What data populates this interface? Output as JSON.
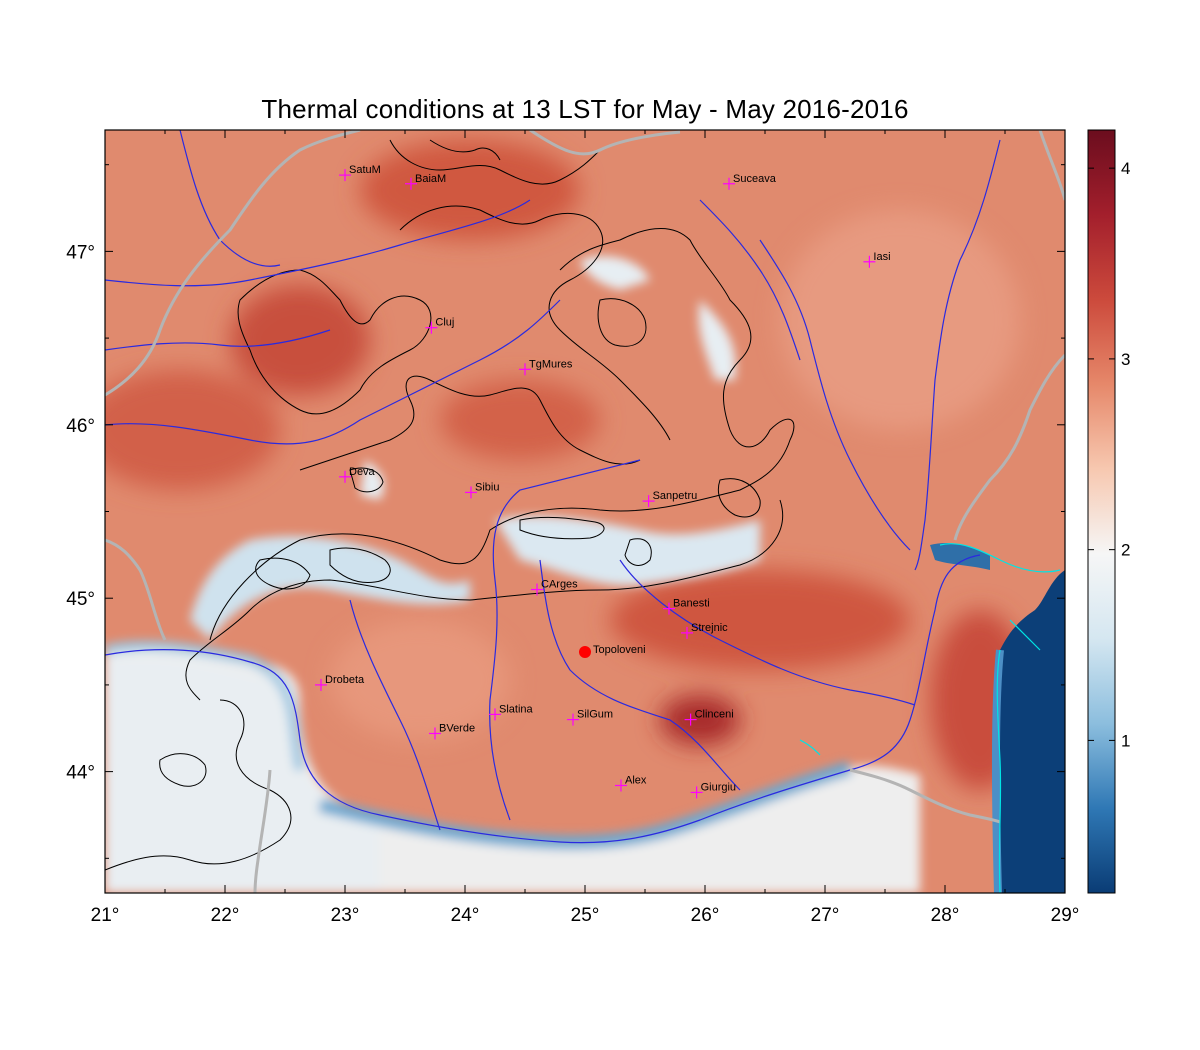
{
  "title": "Thermal conditions at 13 LST for May - May  2016-2016",
  "map": {
    "lon_range": [
      21,
      29
    ],
    "lat_range": [
      43.3,
      47.7
    ],
    "lon_ticks": [
      {
        "value": 21,
        "label": "21°"
      },
      {
        "value": 22,
        "label": "22°"
      },
      {
        "value": 23,
        "label": "23°"
      },
      {
        "value": 24,
        "label": "24°"
      },
      {
        "value": 25,
        "label": "25°"
      },
      {
        "value": 26,
        "label": "26°"
      },
      {
        "value": 27,
        "label": "27°"
      },
      {
        "value": 28,
        "label": "28°"
      },
      {
        "value": 29,
        "label": "29°"
      }
    ],
    "lat_ticks": [
      {
        "value": 44,
        "label": "44°"
      },
      {
        "value": 45,
        "label": "45°"
      },
      {
        "value": 46,
        "label": "46°"
      },
      {
        "value": 47,
        "label": "47°"
      }
    ],
    "colors": {
      "high": "#d96a50",
      "mid_high": "#ec9a7e",
      "neutral": "#f4f2f0",
      "low": "#b5d4e6",
      "sea": "#0c3f78",
      "rivers": "#2a2ae0",
      "borders": "#b4b4b4",
      "contours": "#000000",
      "station_marker": "#ff00ff",
      "highlight": "#ff0000",
      "coast": "#00e5e5"
    }
  },
  "stations": [
    {
      "name": "SatuM",
      "lon": 23.0,
      "lat": 47.44
    },
    {
      "name": "BaiaM",
      "lon": 23.55,
      "lat": 47.39
    },
    {
      "name": "Suceava",
      "lon": 26.2,
      "lat": 47.39
    },
    {
      "name": "Iasi",
      "lon": 27.37,
      "lat": 46.94
    },
    {
      "name": "Cluj",
      "lon": 23.72,
      "lat": 46.56
    },
    {
      "name": "TgMures",
      "lon": 24.5,
      "lat": 46.32
    },
    {
      "name": "Deva",
      "lon": 23.0,
      "lat": 45.7
    },
    {
      "name": "Sibiu",
      "lon": 24.05,
      "lat": 45.61
    },
    {
      "name": "Sanpetru",
      "lon": 25.53,
      "lat": 45.56
    },
    {
      "name": "CArges",
      "lon": 24.6,
      "lat": 45.05
    },
    {
      "name": "Banesti",
      "lon": 25.7,
      "lat": 44.94
    },
    {
      "name": "Strejnic",
      "lon": 25.85,
      "lat": 44.8
    },
    {
      "name": "Drobeta",
      "lon": 22.8,
      "lat": 44.5
    },
    {
      "name": "Slatina",
      "lon": 24.25,
      "lat": 44.33
    },
    {
      "name": "SilGum",
      "lon": 24.9,
      "lat": 44.3
    },
    {
      "name": "BVerde",
      "lon": 23.75,
      "lat": 44.22
    },
    {
      "name": "Clinceni",
      "lon": 25.88,
      "lat": 44.3
    },
    {
      "name": "Alex",
      "lon": 25.3,
      "lat": 43.92
    },
    {
      "name": "Giurgiu",
      "lon": 25.93,
      "lat": 43.88
    }
  ],
  "highlight": {
    "name": "Topoloveni",
    "lon": 25.0,
    "lat": 44.69
  },
  "colorbar": {
    "min": 0.2,
    "max": 4.2,
    "ticks": [
      {
        "value": 1,
        "label": "1"
      },
      {
        "value": 2,
        "label": "2"
      },
      {
        "value": 3,
        "label": "3"
      },
      {
        "value": 4,
        "label": "4"
      }
    ],
    "colors": [
      "#0a3c75",
      "#2f78b5",
      "#8cbede",
      "#d5e7f1",
      "#f6f6f6",
      "#f7c8b0",
      "#e6886a",
      "#cc4a3c",
      "#a31f2c",
      "#6b0d1e"
    ]
  }
}
